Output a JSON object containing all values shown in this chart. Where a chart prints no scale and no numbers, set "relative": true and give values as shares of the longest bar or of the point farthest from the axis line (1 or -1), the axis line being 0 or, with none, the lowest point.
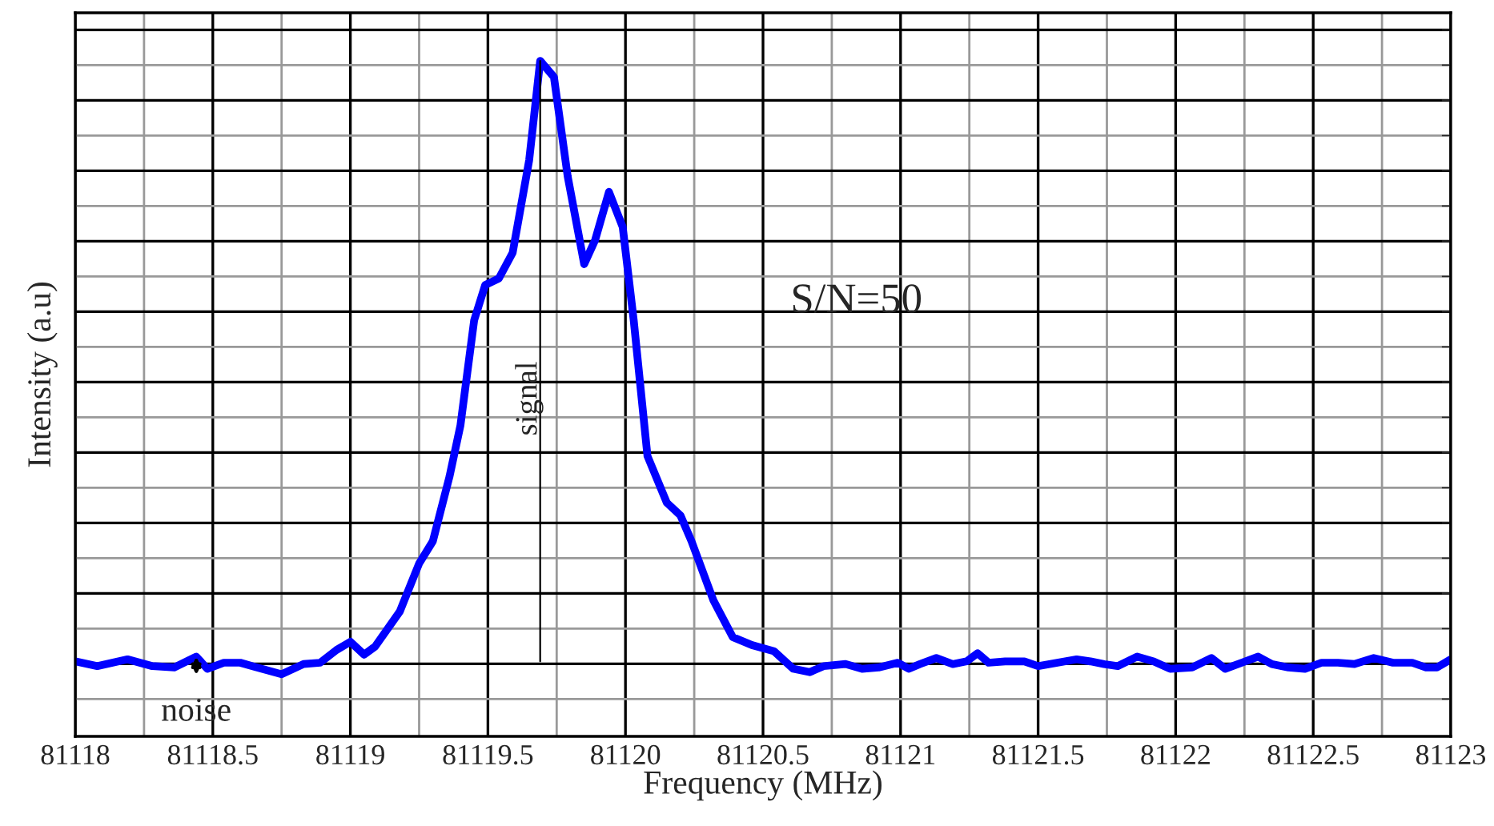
{
  "chart_data": {
    "type": "line",
    "relative": true,
    "xlabel": "Frequency (MHz)",
    "ylabel": "Intensity (a.u)",
    "xlim": [
      81118,
      81123
    ],
    "xticks": [
      81118,
      81118.5,
      81119,
      81119.5,
      81120,
      81120.5,
      81121,
      81121.5,
      81122,
      81122.5,
      81123
    ],
    "grid": true,
    "marker": "none",
    "line_style": "solid",
    "annotations": [
      "S/N=50",
      "noise"
    ],
    "ref_lines": [
      {
        "axis": "x",
        "value": 81119.69,
        "label": "signal",
        "color": "#000000"
      }
    ],
    "series": [
      {
        "color": "#0000ff",
        "x": [
          81118,
          81118.08,
          81118.19,
          81118.28,
          81118.36,
          81118.44,
          81118.48,
          81118.54,
          81118.6,
          81118.66,
          81118.75,
          81118.83,
          81118.89,
          81118.95,
          81119.0,
          81119.05,
          81119.09,
          81119.18,
          81119.25,
          81119.3,
          81119.36,
          81119.4,
          81119.45,
          81119.49,
          81119.54,
          81119.59,
          81119.65,
          81119.69,
          81119.74,
          81119.79,
          81119.85,
          81119.89,
          81119.94,
          81119.99,
          81120.03,
          81120.08,
          81120.15,
          81120.2,
          81120.24,
          81120.32,
          81120.39,
          81120.46,
          81120.54,
          81120.61,
          81120.67,
          81120.72,
          81120.8,
          81120.86,
          81120.92,
          81120.99,
          81121.03,
          81121.07,
          81121.13,
          81121.19,
          81121.24,
          81121.28,
          81121.32,
          81121.38,
          81121.45,
          81121.5,
          81121.57,
          81121.64,
          81121.69,
          81121.74,
          81121.79,
          81121.86,
          81121.92,
          81121.98,
          81122.06,
          81122.13,
          81122.18,
          81122.24,
          81122.3,
          81122.35,
          81122.41,
          81122.47,
          81122.53,
          81122.59,
          81122.65,
          81122.72,
          81122.79,
          81122.86,
          81122.91,
          81122.95,
          81123
        ],
        "values": [
          0.111,
          0.104,
          0.114,
          0.104,
          0.102,
          0.118,
          0.1,
          0.109,
          0.109,
          0.102,
          0.092,
          0.107,
          0.109,
          0.128,
          0.14,
          0.121,
          0.133,
          0.185,
          0.256,
          0.289,
          0.384,
          0.46,
          0.616,
          0.668,
          0.678,
          0.716,
          0.853,
          1.0,
          0.976,
          0.829,
          0.699,
          0.735,
          0.806,
          0.754,
          0.616,
          0.415,
          0.346,
          0.327,
          0.289,
          0.201,
          0.147,
          0.135,
          0.126,
          0.1,
          0.095,
          0.104,
          0.107,
          0.1,
          0.102,
          0.109,
          0.1,
          0.107,
          0.116,
          0.107,
          0.111,
          0.123,
          0.109,
          0.111,
          0.111,
          0.104,
          0.109,
          0.114,
          0.111,
          0.107,
          0.104,
          0.118,
          0.111,
          0.1,
          0.102,
          0.116,
          0.1,
          0.109,
          0.118,
          0.107,
          0.102,
          0.1,
          0.109,
          0.109,
          0.107,
          0.116,
          0.109,
          0.109,
          0.102,
          0.102,
          0.114
        ]
      }
    ]
  }
}
